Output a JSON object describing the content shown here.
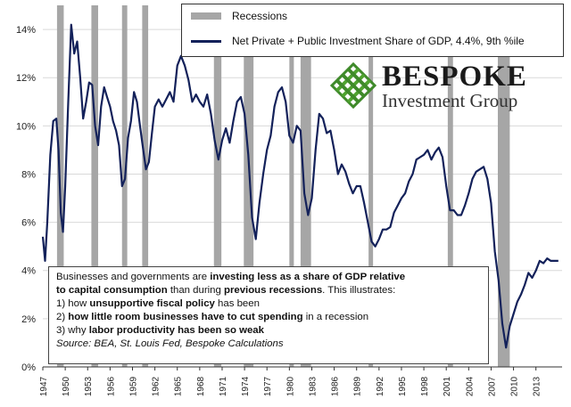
{
  "legend": {
    "recessions_label": "Recessions",
    "series_label": "Net Private + Public Investment Share of GDP, 4.4%, 9th %ile"
  },
  "logo": {
    "name_line1": "BESPOKE",
    "name_line2": "Investment Group"
  },
  "note": {
    "line1_a": "Businesses and governments are ",
    "line1_b": "investing less as a share of GDP relative",
    "line2_a": "to capital consumption",
    "line2_b": " than during ",
    "line2_c": "previous recessions",
    "line2_d": ".  This illustrates:",
    "line3_a": "1) how ",
    "line3_b": "unsupportive fiscal policy",
    "line3_c": " has been",
    "line4_a": "2) ",
    "line4_b": "how little room businesses have to cut spending",
    "line4_c": " in a recession",
    "line5_a": "3) why ",
    "line5_b": "labor productivity has been so weak",
    "line6": "Source: BEA, St. Louis Fed, Bespoke Calculations"
  },
  "colors": {
    "line": "#13215a",
    "recession": "#a6a6a6",
    "grid": "#d9d9d9"
  },
  "chart_data": {
    "type": "line",
    "ylim": [
      0,
      15
    ],
    "yticks": [
      0,
      2,
      4,
      6,
      8,
      10,
      12,
      14
    ],
    "ytick_labels": [
      "0%",
      "2%",
      "4%",
      "6%",
      "8%",
      "10%",
      "12%",
      "14%"
    ],
    "xlim": [
      1947,
      2016.5
    ],
    "xticks": [
      1947,
      1950,
      1953,
      1956,
      1959,
      1962,
      1965,
      1968,
      1971,
      1974,
      1977,
      1980,
      1983,
      1986,
      1989,
      1992,
      1995,
      1998,
      2001,
      2004,
      2007,
      2010,
      2013
    ],
    "grid": "horizontal",
    "recessions": [
      [
        1948.9,
        1949.8
      ],
      [
        1953.5,
        1954.4
      ],
      [
        1957.6,
        1958.3
      ],
      [
        1960.3,
        1961.1
      ],
      [
        1969.9,
        1970.9
      ],
      [
        1973.9,
        1975.2
      ],
      [
        1980.0,
        1980.6
      ],
      [
        1981.5,
        1982.9
      ],
      [
        1990.6,
        1991.2
      ],
      [
        2001.2,
        2001.9
      ],
      [
        2007.9,
        2009.5
      ]
    ],
    "series": [
      {
        "name": "Net Private + Public Investment Share of GDP, 4.4%, 9th %ile",
        "x": [
          1947.0,
          1947.3,
          1947.6,
          1948.0,
          1948.4,
          1948.8,
          1949.1,
          1949.4,
          1949.7,
          1950.0,
          1950.4,
          1950.8,
          1951.2,
          1951.6,
          1952.0,
          1952.4,
          1952.8,
          1953.2,
          1953.6,
          1954.0,
          1954.4,
          1954.8,
          1955.2,
          1955.6,
          1956.0,
          1956.4,
          1956.8,
          1957.2,
          1957.6,
          1958.0,
          1958.4,
          1958.8,
          1959.2,
          1959.6,
          1960.0,
          1960.4,
          1960.8,
          1961.2,
          1961.6,
          1962.0,
          1962.5,
          1963.0,
          1963.5,
          1964.0,
          1964.5,
          1965.0,
          1965.5,
          1966.0,
          1966.5,
          1967.0,
          1967.5,
          1968.0,
          1968.5,
          1969.0,
          1969.5,
          1970.0,
          1970.5,
          1971.0,
          1971.5,
          1972.0,
          1972.5,
          1973.0,
          1973.5,
          1974.0,
          1974.5,
          1975.0,
          1975.5,
          1976.0,
          1976.5,
          1977.0,
          1977.5,
          1978.0,
          1978.5,
          1979.0,
          1979.5,
          1980.0,
          1980.5,
          1981.0,
          1981.5,
          1982.0,
          1982.5,
          1983.0,
          1983.5,
          1984.0,
          1984.5,
          1985.0,
          1985.5,
          1986.0,
          1986.5,
          1987.0,
          1987.5,
          1988.0,
          1988.5,
          1989.0,
          1989.5,
          1990.0,
          1990.5,
          1991.0,
          1991.5,
          1992.0,
          1992.5,
          1993.0,
          1993.5,
          1994.0,
          1994.5,
          1995.0,
          1995.5,
          1996.0,
          1996.5,
          1997.0,
          1997.5,
          1998.0,
          1998.5,
          1999.0,
          1999.5,
          2000.0,
          2000.5,
          2001.0,
          2001.5,
          2002.0,
          2002.5,
          2003.0,
          2003.5,
          2004.0,
          2004.5,
          2005.0,
          2005.5,
          2006.0,
          2006.5,
          2007.0,
          2007.5,
          2008.0,
          2008.5,
          2009.0,
          2009.5,
          2010.0,
          2010.5,
          2011.0,
          2011.5,
          2012.0,
          2012.5,
          2013.0,
          2013.5,
          2014.0,
          2014.5,
          2015.0,
          2015.5,
          2016.0
        ],
        "values": [
          5.4,
          4.4,
          6.0,
          8.8,
          10.2,
          10.3,
          9.0,
          6.4,
          5.6,
          7.5,
          11.0,
          14.2,
          13.0,
          13.5,
          12.0,
          10.3,
          11.0,
          11.8,
          11.7,
          10.0,
          9.2,
          10.8,
          11.6,
          11.2,
          10.8,
          10.2,
          9.8,
          9.2,
          7.5,
          7.8,
          9.5,
          10.2,
          11.4,
          11.0,
          10.0,
          9.1,
          8.2,
          8.5,
          9.7,
          10.8,
          11.1,
          10.8,
          11.1,
          11.4,
          11.0,
          12.5,
          12.9,
          12.5,
          11.9,
          11.0,
          11.3,
          11.0,
          10.8,
          11.3,
          10.5,
          9.4,
          8.6,
          9.4,
          9.9,
          9.3,
          10.2,
          11.0,
          11.2,
          10.5,
          8.8,
          6.2,
          5.3,
          6.8,
          8.0,
          9.0,
          9.6,
          10.8,
          11.4,
          11.6,
          11.0,
          9.6,
          9.3,
          10.0,
          9.8,
          7.2,
          6.3,
          7.0,
          9.0,
          10.5,
          10.3,
          9.7,
          9.8,
          9.0,
          8.0,
          8.4,
          8.1,
          7.6,
          7.2,
          7.5,
          7.5,
          6.8,
          6.0,
          5.2,
          5.0,
          5.3,
          5.7,
          5.7,
          5.8,
          6.4,
          6.7,
          7.0,
          7.2,
          7.7,
          8.0,
          8.6,
          8.7,
          8.8,
          9.0,
          8.6,
          8.9,
          9.1,
          8.7,
          7.5,
          6.5,
          6.5,
          6.3,
          6.3,
          6.7,
          7.2,
          7.8,
          8.1,
          8.2,
          8.3,
          7.8,
          6.8,
          4.8,
          3.6,
          1.8,
          0.8,
          1.7,
          2.2,
          2.7,
          3.0,
          3.4,
          3.9,
          3.7,
          4.0,
          4.4,
          4.3,
          4.5,
          4.4,
          4.4,
          4.4
        ]
      }
    ]
  }
}
